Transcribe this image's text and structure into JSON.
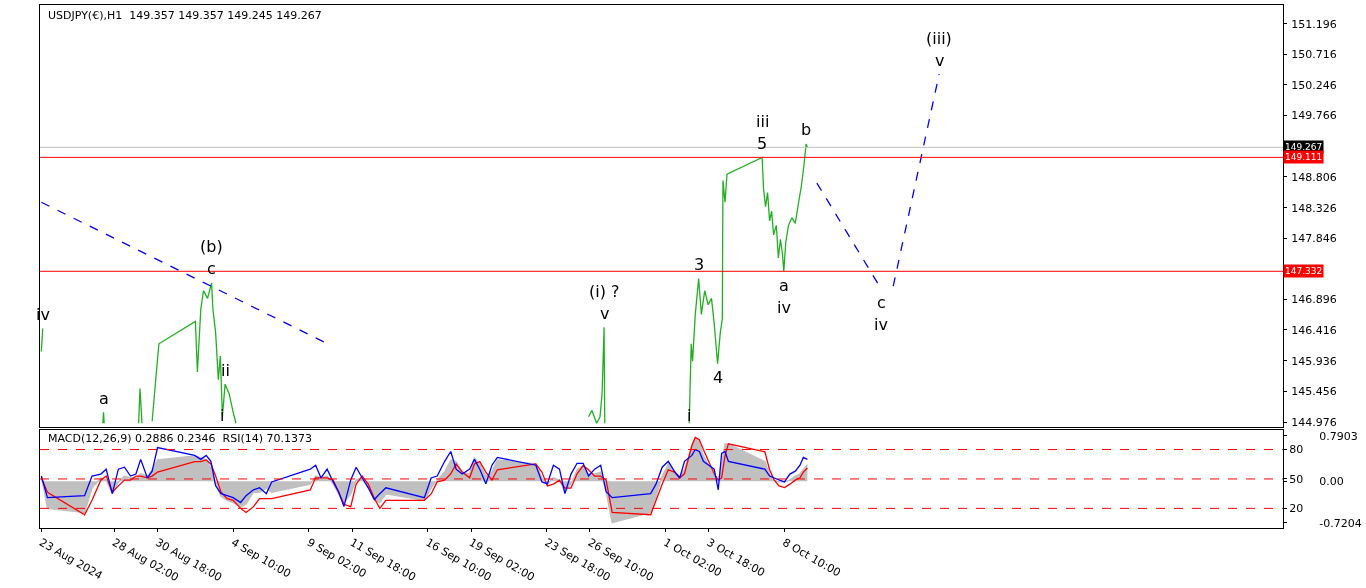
{
  "chart_data": [
    {
      "type": "line",
      "title": "USDJPY(€),H1  149.357 149.357 149.245 149.267",
      "tick_labels": "y",
      "xlim": [
        "2024-08-23T12:00",
        "2024-11-08T04:00"
      ],
      "ylim": [
        144.899,
        151.49
      ],
      "yticks": [
        151.196,
        150.716,
        150.246,
        149.766,
        148.806,
        148.326,
        147.846,
        146.896,
        146.416,
        145.936,
        145.456,
        144.976
      ],
      "marker": "none",
      "series": [
        {
          "color": "#22b022",
          "line_style": "solid",
          "x": [
            "2024-08-23T14:00",
            "2024-08-23T16:00",
            "2024-08-23T18:00",
            "2024-08-27T09:00",
            "2024-08-27T10:00",
            "2024-08-27T11:00",
            "2024-08-27T12:00",
            "2024-08-29T14:00",
            "2024-08-29T16:00",
            "2024-08-29T19:00",
            "2024-08-30T00:00",
            "2024-08-30T10:00",
            "2024-08-30T16:00",
            "2024-08-30T20:00",
            "2024-09-02T02:00",
            "2024-09-02T05:00",
            "2024-09-02T10:00",
            "2024-09-02T14:00",
            "2024-09-02T20:00",
            "2024-09-03T02:00",
            "2024-09-03T04:00",
            "2024-09-03T08:00",
            "2024-09-03T12:00",
            "2024-09-03T15:00",
            "2024-09-03T18:00",
            "2024-09-03T22:00",
            "2024-09-04T04:00",
            "2024-09-04T10:00",
            "2024-09-04T14:00",
            "2024-09-04T16:00",
            "2024-09-26T08:00",
            "2024-09-26T13:00",
            "2024-09-26T20:00",
            "2024-09-27T01:00",
            "2024-09-27T04:00",
            "2024-09-27T07:00",
            "2024-09-27T08:00",
            "2024-09-27T10:00",
            "2024-10-02T13:00",
            "2024-10-02T16:00",
            "2024-10-02T18:00",
            "2024-10-02T22:00",
            "2024-10-03T03:00",
            "2024-10-03T07:00",
            "2024-10-03T12:00",
            "2024-10-03T17:00",
            "2024-10-03T22:00",
            "2024-10-04T02:00",
            "2024-10-04T07:00",
            "2024-10-04T11:00",
            "2024-10-04T14:00",
            "2024-10-04T15:00",
            "2024-10-04T18:00",
            "2024-10-04T21:00",
            "2024-10-07T01:00",
            "2024-10-07T03:00",
            "2024-10-07T06:00",
            "2024-10-07T09:00",
            "2024-10-07T12:00",
            "2024-10-07T15:00",
            "2024-10-07T18:00",
            "2024-10-07T22:00",
            "2024-10-08T01:00",
            "2024-10-08T04:00",
            "2024-10-08T07:00",
            "2024-10-08T09:00",
            "2024-10-08T12:00",
            "2024-10-08T16:00",
            "2024-10-08T21:00",
            "2024-10-09T02:00",
            "2024-10-09T07:00",
            "2024-10-09T11:00",
            "2024-10-09T15:00",
            "2024-10-09T18:00",
            "2024-10-09T20:00"
          ],
          "values": [
            146.08,
            146.44,
            null,
            144.96,
            145.13,
            144.96,
            null,
            144.96,
            145.5,
            144.96,
            null,
            144.99,
            145.72,
            146.2,
            146.55,
            145.76,
            146.74,
            147.03,
            146.91,
            147.15,
            146.74,
            146.37,
            145.64,
            146.01,
            145.06,
            145.57,
            145.42,
            145.13,
            144.96,
            null,
            145.06,
            145.16,
            144.96,
            145.06,
            145.42,
            146.46,
            144.96,
            null,
            144.96,
            146.2,
            145.93,
            146.66,
            147.22,
            146.66,
            147.03,
            146.81,
            146.91,
            146.52,
            145.89,
            146.37,
            146.59,
            148.75,
            148.41,
            148.85,
            149.11,
            148.63,
            148.34,
            148.56,
            148.12,
            148.27,
            147.9,
            148.05,
            147.54,
            147.83,
            147.61,
            147.33,
            147.79,
            148.05,
            148.17,
            148.08,
            148.41,
            148.66,
            149.0,
            149.32,
            149.27
          ]
        },
        {
          "color": "#0000ff",
          "line_style": "dashed",
          "x": [
            "2024-08-23T14:00",
            "2024-09-10T00:00"
          ],
          "values": [
            148.41,
            146.23
          ]
        },
        {
          "color": "#0000ff",
          "line_style": "dashed",
          "x": [
            "2024-10-10T10:00",
            "2024-10-14T09:00",
            "2024-10-14T21:00",
            "2024-10-15T03:00",
            "2024-10-17T23:00"
          ],
          "values": [
            148.71,
            147.06,
            null,
            147.1,
            150.41
          ]
        }
      ],
      "ref_lines": [
        {
          "axis": "y",
          "value": 149.267,
          "label": "149.267",
          "color": "#c0c0c0"
        },
        {
          "axis": "y",
          "value": 149.111,
          "label": "149.111",
          "color": "#ff0000"
        },
        {
          "axis": "y",
          "value": 147.332,
          "label": "147.332",
          "color": "#ff0000"
        }
      ],
      "annotations": [
        {
          "text": "iv",
          "x": "2024-08-23T16:00",
          "y": 146.44
        },
        {
          "text": "a",
          "x": "2024-08-27T10:00",
          "y": 145.13
        },
        {
          "text": "c",
          "x": "2024-09-03T02:00",
          "y": 147.15
        },
        {
          "text": "(b)",
          "x": "2024-09-03T02:00",
          "y": 147.15
        },
        {
          "text": "ii",
          "x": "2024-09-03T22:00",
          "y": 145.57
        },
        {
          "text": "i",
          "x": "2024-09-03T18:00",
          "y": 145.06
        },
        {
          "text": "v",
          "x": "2024-09-27T07:00",
          "y": 146.46
        },
        {
          "text": "(i) ?",
          "x": "2024-09-27T07:00",
          "y": 146.46
        },
        {
          "text": "i",
          "x": "2024-10-02T13:00",
          "y": 144.96
        },
        {
          "text": "3",
          "x": "2024-10-03T03:00",
          "y": 147.22
        },
        {
          "text": "4",
          "x": "2024-10-04T07:00",
          "y": 145.89
        },
        {
          "text": "5",
          "x": "2024-10-07T01:00",
          "y": 149.11
        },
        {
          "text": "iii",
          "x": "2024-10-07T01:00",
          "y": 149.11
        },
        {
          "text": "b",
          "x": "2024-10-09T18:00",
          "y": 149.32
        },
        {
          "text": "a",
          "x": "2024-10-08T09:00",
          "y": 147.33
        },
        {
          "text": "iv",
          "x": "2024-10-08T09:00",
          "y": 147.33
        },
        {
          "text": "c",
          "x": "2024-10-14T09:00",
          "y": 147.06
        },
        {
          "text": "iv",
          "x": "2024-10-14T09:00",
          "y": 147.06
        },
        {
          "text": "v",
          "x": "2024-10-17T23:00",
          "y": 150.41
        },
        {
          "text": "(iii)",
          "x": "2024-10-17T23:00",
          "y": 150.41
        }
      ]
    },
    {
      "type": "line",
      "title": "MACD(12,26,9) 0.2886 0.2346  RSI(14) 70.1373",
      "marker": "none",
      "xlim": [
        "2024-08-23T12:00",
        "2024-11-08T04:00"
      ],
      "xticks": [
        {
          "value": "2024-08-23T14:00",
          "label": "23 Aug 2024"
        },
        {
          "value": "2024-08-28T02:00",
          "label": "28 Aug 02:00"
        },
        {
          "value": "2024-08-30T18:00",
          "label": "30 Aug 18:00"
        },
        {
          "value": "2024-09-04T10:00",
          "label": "4 Sep 10:00"
        },
        {
          "value": "2024-09-09T02:00",
          "label": "9 Sep 02:00"
        },
        {
          "value": "2024-09-11T18:00",
          "label": "11 Sep 18:00"
        },
        {
          "value": "2024-09-16T10:00",
          "label": "16 Sep 10:00"
        },
        {
          "value": "2024-09-19T02:00",
          "label": "19 Sep 02:00"
        },
        {
          "value": "2024-09-23T18:00",
          "label": "23 Sep 18:00"
        },
        {
          "value": "2024-09-26T10:00",
          "label": "26 Sep 10:00"
        },
        {
          "value": "2024-10-01T02:00",
          "label": "1 Oct 02:00"
        },
        {
          "value": "2024-10-03T18:00",
          "label": "3 Oct 18:00"
        },
        {
          "value": "2024-10-08T10:00",
          "label": "8 Oct 10:00"
        }
      ],
      "ylim": [
        -0.81,
        0.89
      ],
      "yticks": [
        0.7903,
        {
          "value": 0,
          "label": "0.00"
        },
        -0.7204
      ],
      "y2lim": [
        0,
        100
      ],
      "y2ticks": [
        20,
        50,
        80
      ],
      "x": [
        "2024-08-23T14:00",
        "2024-08-23T23:00",
        "2024-08-26T06:00",
        "2024-08-26T17:00",
        "2024-08-27T06:00",
        "2024-08-27T14:00",
        "2024-08-27T23:00",
        "2024-08-28T08:00",
        "2024-08-28T17:00",
        "2024-08-29T02:00",
        "2024-08-29T10:00",
        "2024-08-29T17:00",
        "2024-08-30T03:00",
        "2024-08-30T10:00",
        "2024-08-30T18:00",
        "2024-09-02T01:00",
        "2024-09-02T10:00",
        "2024-09-02T18:00",
        "2024-09-03T01:00",
        "2024-09-03T08:00",
        "2024-09-03T16:00",
        "2024-09-04T01:00",
        "2024-09-04T10:00",
        "2024-09-04T21:00",
        "2024-09-05T05:00",
        "2024-09-05T16:00",
        "2024-09-06T01:00",
        "2024-09-06T11:00",
        "2024-09-06T19:00",
        "2024-09-09T04:00",
        "2024-09-09T12:00",
        "2024-09-09T20:00",
        "2024-09-10T05:00",
        "2024-09-10T14:00",
        "2024-09-10T22:00",
        "2024-09-11T06:00",
        "2024-09-11T16:00",
        "2024-09-12T00:00",
        "2024-09-12T09:00",
        "2024-09-12T18:00",
        "2024-09-13T03:00",
        "2024-09-13T11:00",
        "2024-09-13T20:00",
        "2024-09-16T05:00",
        "2024-09-16T15:00",
        "2024-09-17T00:00",
        "2024-09-17T11:00",
        "2024-09-17T20:00",
        "2024-09-18T04:00",
        "2024-09-18T13:00",
        "2024-09-19T00:00",
        "2024-09-19T07:00",
        "2024-09-19T15:00",
        "2024-09-20T00:00",
        "2024-09-20T09:00",
        "2024-09-20T17:00",
        "2024-09-23T02:00",
        "2024-09-23T11:00",
        "2024-09-23T19:00",
        "2024-09-24T04:00",
        "2024-09-24T13:00",
        "2024-09-24T21:00",
        "2024-09-25T06:00",
        "2024-09-25T15:00",
        "2024-09-26T00:00",
        "2024-09-26T08:00",
        "2024-09-26T17:00",
        "2024-09-27T02:00",
        "2024-09-27T10:00",
        "2024-09-27T19:00",
        "2024-09-30T04:00",
        "2024-09-30T12:00",
        "2024-09-30T21:00",
        "2024-10-01T06:00",
        "2024-10-01T15:00",
        "2024-10-01T23:00",
        "2024-10-02T06:00",
        "2024-10-02T17:00",
        "2024-10-02T22:00",
        "2024-10-03T04:00",
        "2024-10-03T10:00",
        "2024-10-03T18:00",
        "2024-10-04T02:00",
        "2024-10-04T08:00",
        "2024-10-04T13:00",
        "2024-10-04T18:00",
        "2024-10-04T23:00",
        "2024-10-07T05:00",
        "2024-10-07T12:00",
        "2024-10-07T19:00",
        "2024-10-08T02:00",
        "2024-10-08T10:00",
        "2024-10-08T18:00",
        "2024-10-09T02:00",
        "2024-10-09T09:00",
        "2024-10-09T14:00",
        "2024-10-09T20:00"
      ],
      "series": [
        {
          "type": "area",
          "color": "#c0c0c0",
          "values": [
            0.09,
            -0.47,
            -0.54,
            -0.12,
            0.06,
            0.02,
            -0.22,
            -0.01,
            0.09,
            0.06,
            0.06,
            0.13,
            0.09,
            0.2,
            0.37,
            0.44,
            0.41,
            0.37,
            0.23,
            -0.05,
            -0.26,
            -0.33,
            -0.37,
            -0.44,
            -0.4,
            -0.19,
            -0.19,
            -0.12,
            -0.19,
            -0.05,
            0.09,
            0.06,
            0.09,
            -0.05,
            -0.22,
            -0.37,
            -0.22,
            0.02,
            0.06,
            -0.12,
            -0.33,
            -0.37,
            -0.22,
            -0.33,
            -0.12,
            0.02,
            0.16,
            0.37,
            0.34,
            0.16,
            0.13,
            0.41,
            0.3,
            0.09,
            0.16,
            0.37,
            0.3,
            0.06,
            -0.05,
            0.06,
            0.02,
            -0.19,
            -0.05,
            0.2,
            0.27,
            0.13,
            0.13,
            0.16,
            -0.19,
            -0.72,
            -0.54,
            -0.26,
            0.09,
            0.3,
            0.16,
            0.09,
            0.2,
            0.62,
            0.76,
            0.69,
            0.44,
            0.27,
            0.09,
            0.0,
            0.3,
            0.65,
            0.65,
            0.34,
            0.13,
            0.02,
            -0.01,
            -0.01,
            0.02,
            0.09,
            0.13,
            0.2,
            0.29
          ]
        },
        {
          "type": "line",
          "color": "#ff0000",
          "values": [
            0.06,
            -0.19,
            -0.58,
            -0.33,
            0.02,
            0.09,
            -0.19,
            -0.08,
            0.02,
            0.02,
            0.09,
            0.09,
            0.06,
            0.09,
            0.16,
            0.34,
            0.34,
            0.37,
            0.3,
            0.09,
            -0.19,
            -0.3,
            -0.33,
            -0.47,
            -0.54,
            -0.44,
            -0.3,
            -0.3,
            -0.3,
            -0.15,
            0.06,
            0.06,
            0.06,
            0.02,
            -0.19,
            -0.4,
            -0.44,
            -0.05,
            0.09,
            -0.05,
            -0.3,
            -0.47,
            -0.33,
            -0.33,
            -0.22,
            -0.01,
            0.02,
            0.13,
            0.3,
            0.16,
            0.06,
            0.3,
            0.34,
            0.16,
            0.02,
            0.2,
            0.3,
            0.16,
            -0.08,
            -0.05,
            0.02,
            -0.12,
            -0.12,
            0.13,
            0.27,
            0.2,
            0.09,
            0.09,
            0.02,
            -0.54,
            -0.58,
            -0.33,
            -0.05,
            0.2,
            0.16,
            0.06,
            0.13,
            0.62,
            0.76,
            0.72,
            0.55,
            0.34,
            0.13,
            0.02,
            0.06,
            0.44,
            0.65,
            0.51,
            0.2,
            0.02,
            -0.08,
            -0.11,
            -0.05,
            0.02,
            0.06,
            0.16,
            0.23
          ]
        },
        {
          "type": "line",
          "color": "#0000ff",
          "axis": "y2",
          "values": [
            53,
            31,
            33,
            53,
            55,
            60,
            35,
            60,
            62,
            53,
            55,
            70,
            51,
            58,
            82,
            74,
            70,
            74,
            68,
            43,
            35,
            33,
            31,
            26,
            33,
            39,
            41,
            35,
            47,
            60,
            64,
            51,
            60,
            47,
            37,
            22,
            49,
            62,
            51,
            41,
            29,
            35,
            41,
            31,
            51,
            53,
            68,
            78,
            60,
            55,
            60,
            70,
            60,
            45,
            64,
            72,
            64,
            47,
            45,
            64,
            60,
            35,
            55,
            66,
            66,
            53,
            60,
            64,
            37,
            31,
            35,
            45,
            62,
            68,
            58,
            51,
            68,
            74,
            80,
            78,
            68,
            64,
            60,
            39,
            76,
            78,
            68,
            60,
            53,
            51,
            49,
            47,
            55,
            58,
            64,
            72,
            70
          ]
        }
      ],
      "ref_lines": [
        {
          "axis": "y2",
          "value": 80,
          "color": "#ff0000",
          "line_style": "dashed"
        },
        {
          "axis": "y2",
          "value": 50,
          "color": "#ff0000",
          "line_style": "dashed"
        },
        {
          "axis": "y2",
          "value": 20,
          "color": "#ff0000",
          "line_style": "dashed"
        }
      ]
    }
  ]
}
